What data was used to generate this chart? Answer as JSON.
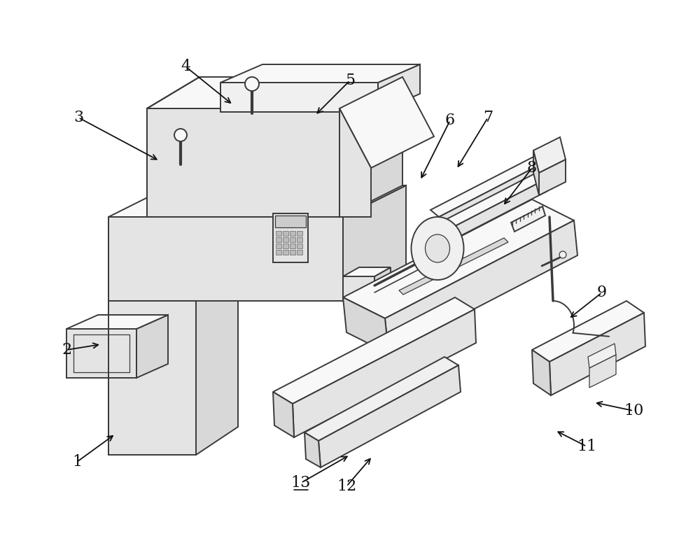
{
  "bg": "#ffffff",
  "lc": "#3a3a3a",
  "lw": 1.4,
  "lw_thin": 0.9,
  "lw_thick": 2.0,
  "face_light": "#f8f8f8",
  "face_mid": "#f0f0f0",
  "face_dark": "#e4e4e4",
  "face_darker": "#d8d8d8",
  "label_fs": 16,
  "figsize": [
    10.0,
    7.96
  ],
  "dpi": 100
}
